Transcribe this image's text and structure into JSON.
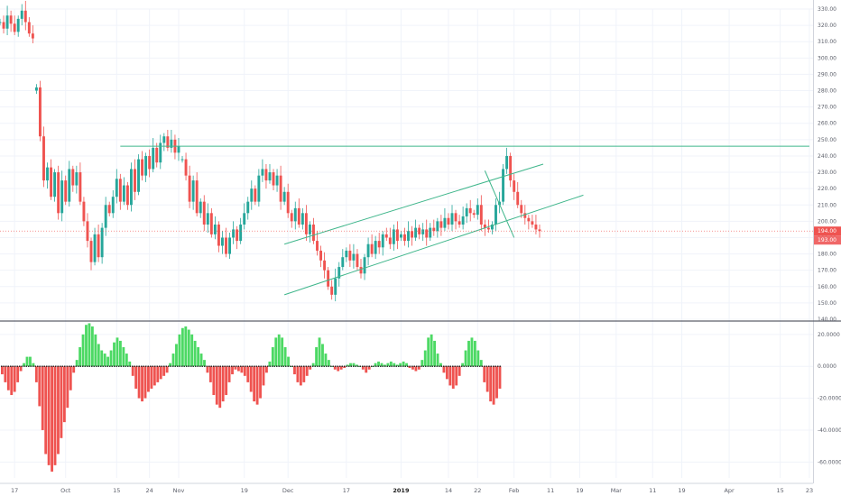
{
  "colors": {
    "up": "#26a69a",
    "down": "#ef5350",
    "hist_up": "#4cd964",
    "hist_down": "#ef5350",
    "trendline": "#3fb68b",
    "grid": "#f0f3fa",
    "axis_text": "#5d606b",
    "divider": "#5d606b"
  },
  "price_axis": {
    "ticks": [
      "330.00",
      "320.00",
      "310.00",
      "300.00",
      "290.00",
      "280.00",
      "270.00",
      "260.00",
      "250.00",
      "240.00",
      "230.00",
      "220.00",
      "210.00",
      "200.00",
      "190.00",
      "180.00",
      "170.00",
      "160.00",
      "150.00",
      "140.00"
    ],
    "current_price_label": "194.00",
    "prev_price_label": "193.00"
  },
  "osc_axis": {
    "ticks": [
      "20.0000",
      "0.0000",
      "-20.0000",
      "-40.0000",
      "-60.0000"
    ]
  },
  "time_axis": {
    "labels": [
      "17",
      "Oct",
      "15",
      "24",
      "Nov",
      "19",
      "Dec",
      "17",
      "2019",
      "14",
      "22",
      "Feb",
      "11",
      "19",
      "Mar",
      "11",
      "19",
      "Apr",
      "15",
      "23"
    ],
    "bold_label": "2019"
  },
  "chart_data": [
    {
      "type": "candlestick",
      "ylim": [
        140,
        330
      ],
      "grid": true,
      "x_start": "2018-09-13",
      "x_end": "2019-04-24",
      "series": [
        {
          "start": "2018-09-13",
          "values": [
            322,
            318,
            326,
            321,
            316,
            324,
            329,
            322,
            315,
            312
          ]
        },
        {
          "start": "2018-09-23",
          "values": [
            282,
            252,
            225,
            233,
            215,
            230,
            205,
            225,
            212,
            232,
            222,
            230,
            212,
            200,
            188,
            175,
            192,
            178,
            196,
            210,
            205,
            215,
            226,
            212,
            222,
            210,
            232,
            218,
            238,
            228,
            240,
            232,
            245,
            236,
            248,
            252,
            245,
            250,
            242,
            246
          ]
        },
        {
          "start": "2018-11-02",
          "values": [
            238,
            228,
            212,
            225,
            205,
            212,
            198,
            205,
            192,
            198,
            185,
            190,
            180,
            190,
            195,
            188,
            198,
            205,
            212,
            220,
            212,
            228,
            232,
            225,
            230,
            222,
            228,
            212,
            218,
            205,
            200,
            208,
            198,
            205,
            192,
            198,
            188,
            182,
            176,
            170,
            160,
            155,
            165,
            172,
            178,
            182,
            176,
            180,
            172,
            168,
            178,
            186,
            180,
            188,
            184,
            192,
            190,
            186,
            195,
            188
          ]
        },
        {
          "start": "2019-01-01",
          "values": [
            192,
            188,
            194,
            190,
            196,
            192,
            195,
            190,
            196,
            194,
            200,
            196,
            202,
            198,
            205,
            200,
            198,
            203,
            208,
            205,
            204,
            210,
            198,
            196,
            195,
            198,
            210,
            212,
            232,
            240,
            225,
            218,
            210,
            205,
            202,
            200,
            198,
            195,
            194
          ]
        }
      ],
      "trendlines": [
        {
          "name": "resistance",
          "points": [
            [
              "2018-10-16",
              246
            ],
            [
              "2019-04-23",
              246
            ]
          ]
        },
        {
          "name": "channel_upper",
          "points": [
            [
              "2018-11-30",
              186
            ],
            [
              "2019-02-09",
              235
            ]
          ]
        },
        {
          "name": "channel_lower",
          "points": [
            [
              "2018-11-30",
              155
            ],
            [
              "2019-02-20",
              216
            ]
          ]
        },
        {
          "name": "descending",
          "points": [
            [
              "2019-01-24",
              231
            ],
            [
              "2019-02-01",
              190
            ]
          ]
        }
      ]
    },
    {
      "type": "bar",
      "ylim": [
        -70,
        25
      ],
      "grid": true,
      "series": [
        {
          "values": [
            -5,
            -10,
            -15,
            -18,
            -16,
            -10,
            -3,
            2,
            6,
            6,
            2,
            -10,
            -25,
            -40,
            -55,
            -62,
            -66,
            -62,
            -55,
            -45,
            -35,
            -26,
            -15,
            -4,
            4,
            12,
            20,
            26,
            27,
            25,
            20,
            14,
            10,
            8,
            6,
            10,
            15,
            18,
            16,
            12,
            8,
            3,
            -6,
            -14,
            -20,
            -22,
            -20,
            -16,
            -14,
            -12,
            -10,
            -8,
            -6,
            -4,
            2,
            8,
            14,
            20,
            24,
            25,
            23,
            20,
            16,
            12,
            8,
            4,
            -4,
            -10,
            -18,
            -24,
            -26,
            -22,
            -18,
            -10,
            -5,
            -2,
            -3,
            -4,
            -6,
            -10,
            -16,
            -22,
            -24,
            -20,
            -12,
            -4,
            3,
            12,
            18,
            20,
            18,
            12,
            6,
            0,
            -5,
            -10,
            -12,
            -10,
            -6,
            -2,
            2,
            12,
            18,
            14,
            8,
            4,
            0,
            -2,
            -3,
            -2,
            -1,
            1,
            2,
            2,
            1,
            0,
            -2,
            -4,
            -2,
            0,
            2,
            3,
            2,
            1,
            2,
            3,
            2,
            1,
            2,
            3,
            2,
            -1,
            -2,
            -3,
            -2,
            4,
            10,
            18,
            20,
            16,
            8,
            2,
            -4,
            -8,
            -12,
            -14,
            -12,
            -6,
            2,
            10,
            16,
            18,
            16,
            10,
            4,
            -10,
            -16,
            -22,
            -24,
            -20,
            -14
          ]
        }
      ]
    }
  ]
}
